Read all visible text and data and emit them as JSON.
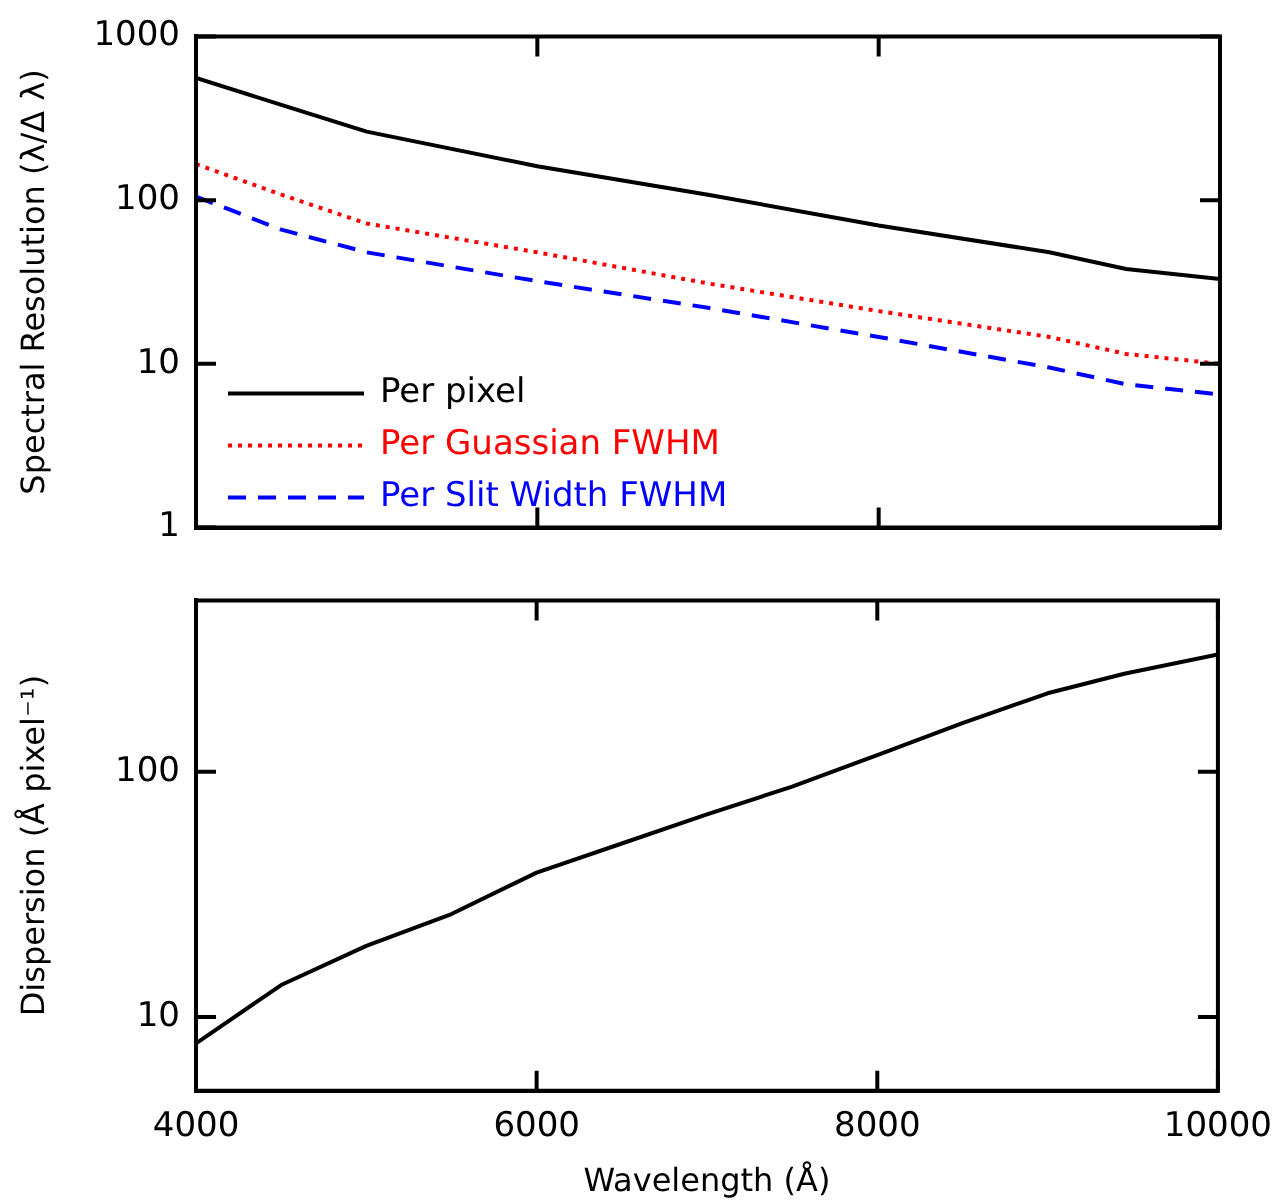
{
  "chart_data": [
    {
      "type": "line",
      "ylabel": "Spectral Resolution (λ/Δ λ)",
      "log": "y",
      "xlim": [
        4000,
        10000
      ],
      "xticks": [
        4000,
        6000,
        8000,
        10000
      ],
      "ylim": [
        1,
        1000
      ],
      "yticks": [
        1,
        10,
        100,
        1000
      ],
      "tick_labels": "y",
      "legend": "bottom left",
      "marker": "none",
      "grid": false,
      "x": [
        4000,
        4500,
        5000,
        6000,
        7000,
        8000,
        9000,
        9450,
        10000
      ],
      "series": [
        {
          "name": "Per pixel",
          "color": "#000000",
          "line_style": "solid",
          "values": [
            557,
            382,
            262,
            161,
            108,
            70,
            48,
            38,
            33
          ]
        },
        {
          "name": "Per Guassian FWHM",
          "color": "#ff0000",
          "line_style": "dotted",
          "values": [
            166,
            108,
            72,
            48,
            31,
            21,
            14.6,
            11.5,
            10
          ]
        },
        {
          "name": "Per Slit Width FWHM",
          "color": "#0000ff",
          "line_style": "dashed",
          "values": [
            105,
            66,
            48,
            32,
            22,
            14.6,
            9.5,
            7.5,
            6.5
          ]
        }
      ]
    },
    {
      "type": "line",
      "xlabel": "Wavelength (Å)",
      "ylabel": "Dispersion (Å pixel⁻¹)",
      "log": "y",
      "xlim": [
        4000,
        10000
      ],
      "xticks": [
        4000,
        6000,
        8000,
        10000
      ],
      "ylim": [
        5,
        500
      ],
      "yticks": [
        10,
        100
      ],
      "legend": false,
      "marker": "none",
      "grid": false,
      "x": [
        4000,
        4500,
        5000,
        5500,
        6000,
        6500,
        7000,
        7500,
        8000,
        8500,
        9000,
        9450,
        10000
      ],
      "series": [
        {
          "color": "#000000",
          "line_style": "solid",
          "values": [
            7.8,
            13.5,
            19.5,
            26.3,
            38.8,
            51,
            67,
            87,
            117,
            158,
            209,
            251,
            301
          ]
        }
      ]
    }
  ]
}
